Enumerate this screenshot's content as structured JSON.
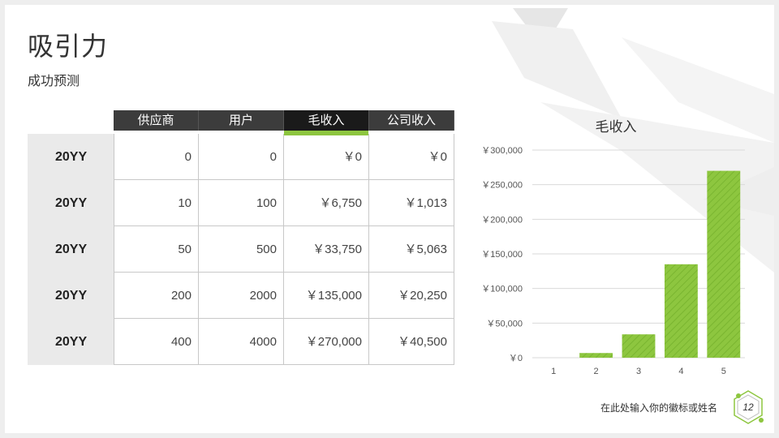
{
  "slide": {
    "title": "吸引力",
    "subtitle": "成功预测",
    "footer_text": "在此处输入你的徽标或姓名",
    "page_number": "12"
  },
  "table": {
    "headers": [
      "供应商",
      "用户",
      "毛收入",
      "公司收入"
    ],
    "rows": [
      {
        "label": "20YY",
        "values": [
          "0",
          "0",
          "￥0",
          "￥0"
        ]
      },
      {
        "label": "20YY",
        "values": [
          "10",
          "100",
          "￥6,750",
          "￥1,013"
        ]
      },
      {
        "label": "20YY",
        "values": [
          "50",
          "500",
          "￥33,750",
          "￥5,063"
        ]
      },
      {
        "label": "20YY",
        "values": [
          "200",
          "2000",
          "￥135,000",
          "￥20,250"
        ]
      },
      {
        "label": "20YY",
        "values": [
          "400",
          "4000",
          "￥270,000",
          "￥40,500"
        ]
      }
    ]
  },
  "colors": {
    "accent": "#8dc63f",
    "header_bg": "#3c3c3c",
    "row_head_bg": "#eaeaea"
  },
  "chart_data": {
    "type": "bar",
    "title": "毛收入",
    "categories": [
      "1",
      "2",
      "3",
      "4",
      "5"
    ],
    "values": [
      0,
      6750,
      33750,
      135000,
      270000
    ],
    "ylim": [
      0,
      300000
    ],
    "yticks": [
      0,
      50000,
      100000,
      150000,
      200000,
      250000,
      300000
    ],
    "ytick_labels": [
      "￥0",
      "￥50,000",
      "￥100,000",
      "￥150,000",
      "￥200,000",
      "￥250,000",
      "￥300,000"
    ],
    "grid": true,
    "legend": "none"
  }
}
